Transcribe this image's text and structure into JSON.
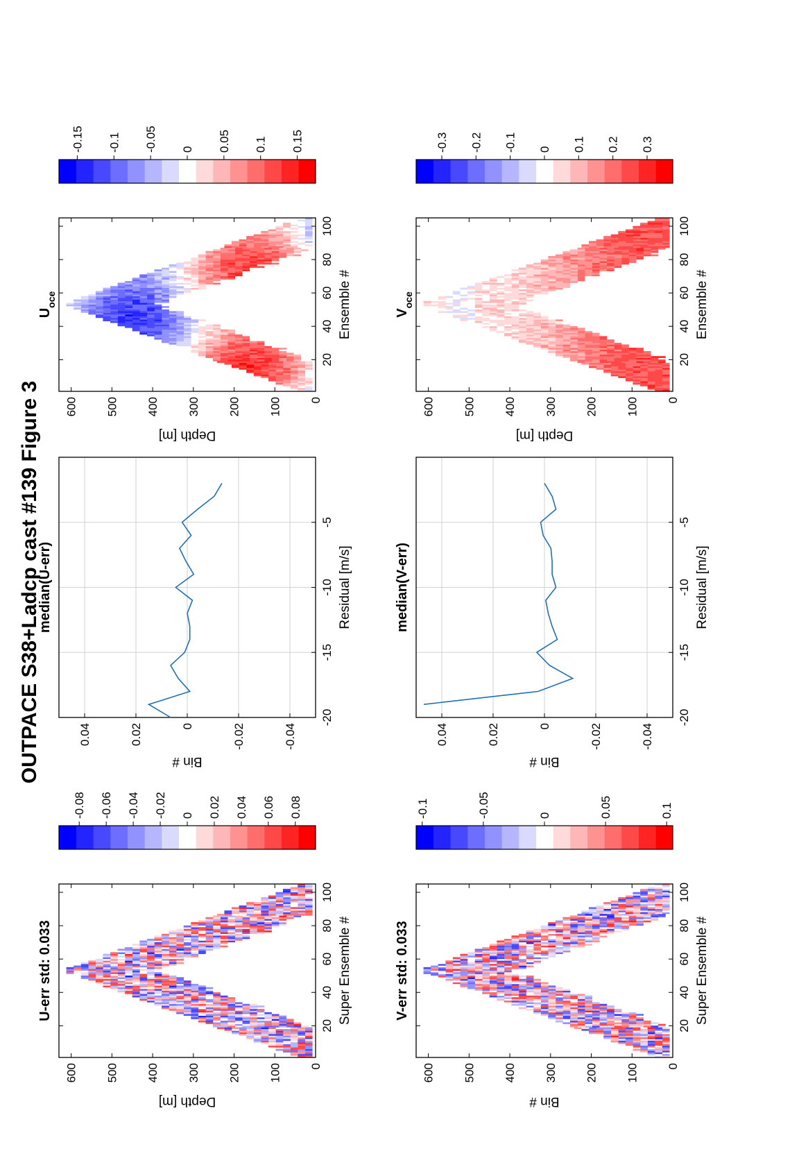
{
  "figure": {
    "title": "OUTPACE S38+Ladcp cast #139  Figure 3"
  },
  "colors": {
    "line": "#1f6fb2",
    "grid": "#d2d2d2",
    "cmap": [
      "#ff0000",
      "#ff2424",
      "#ff4848",
      "#ff6d6d",
      "#ff9191",
      "#ffb6b6",
      "#ffdada",
      "#ffffff",
      "#dadaff",
      "#b6b6ff",
      "#9191ff",
      "#6d6dff",
      "#4848ff",
      "#2424ff",
      "#0000ff"
    ]
  },
  "chart_data": [
    {
      "id": "u_err",
      "type": "heatmap",
      "title": "U-err std: 0.033",
      "xlabel": "Super Ensemble #",
      "ylabel": "Depth [m]",
      "xlim": [
        1,
        105
      ],
      "ylim": [
        0,
        630
      ],
      "xticks": [
        "20",
        "40",
        "60",
        "80",
        "100"
      ],
      "yticks": [
        "0",
        "100",
        "200",
        "300",
        "400",
        "500",
        "600"
      ],
      "colorbar": {
        "range": [
          -0.095,
          0.095
        ],
        "ticks": [
          "0.08",
          "0.06",
          "0.04",
          "0.02",
          "0",
          "-0.02",
          "-0.04",
          "-0.06",
          "-0.08"
        ]
      },
      "pattern": "V-shaped down/up cast, noisy residual ±0.08"
    },
    {
      "id": "u_median",
      "type": "line",
      "title": "median(U-err)",
      "xlabel": "Residual [m/s]",
      "ylabel": "Bin #",
      "xlim": [
        -0.05,
        0.05
      ],
      "ylim": [
        -20,
        0
      ],
      "xticks": [
        "-0.04",
        "-0.02",
        "0",
        "0.02",
        "0.04"
      ],
      "yticks": [
        "-5",
        "-10",
        "-15",
        "-20"
      ],
      "series": [
        {
          "x": [
            -0.0135,
            -0.0105,
            -0.004,
            0.002,
            -0.0015,
            0.003,
            0.0005,
            -0.0025,
            0.0045,
            -0.002,
            0.0,
            -0.001,
            -0.001,
            0.001,
            0.0065,
            0.0035,
            -0.001,
            0.015,
            0.0065
          ],
          "y": [
            -2,
            -3,
            -4,
            -5,
            -6,
            -7,
            -8,
            -9,
            -10,
            -11,
            -12,
            -13,
            -14,
            -15,
            -16,
            -17,
            -18,
            -19,
            -20
          ]
        }
      ]
    },
    {
      "id": "u_oce",
      "type": "heatmap",
      "title": "U",
      "title_sub": "oce",
      "xlabel": "Ensemble #",
      "ylabel": "Depth [m]",
      "xlim": [
        1,
        105
      ],
      "ylim": [
        0,
        630
      ],
      "xticks": [
        "20",
        "40",
        "60",
        "80",
        "100"
      ],
      "yticks": [
        "0",
        "100",
        "200",
        "300",
        "400",
        "500",
        "600"
      ],
      "colorbar": {
        "range": [
          -0.175,
          0.175
        ],
        "ticks": [
          "0.15",
          "0.1",
          "0.05",
          "0",
          "-0.05",
          "-0.1",
          "-0.15"
        ]
      },
      "pattern": "V-shaped cast, alternating red/blue bands with depth"
    },
    {
      "id": "v_err",
      "type": "heatmap",
      "title": "V-err std: 0.033",
      "xlabel": "Super Ensemble #",
      "ylabel": "Bin #",
      "xlim": [
        1,
        105
      ],
      "ylim": [
        0,
        630
      ],
      "xticks": [
        "20",
        "40",
        "60",
        "80",
        "100"
      ],
      "yticks": [
        "0",
        "100",
        "200",
        "300",
        "400",
        "500",
        "600"
      ],
      "colorbar": {
        "range": [
          -0.105,
          0.105
        ],
        "ticks": [
          "0.1",
          "0.05",
          "0",
          "-0.05",
          "-0.1"
        ]
      },
      "pattern": "V-shaped down/up cast, noisy residual ±0.1"
    },
    {
      "id": "v_median",
      "type": "line",
      "title": "median(V-err)",
      "xlabel": "Residual [m/s]",
      "ylabel": "Bin #",
      "xlim": [
        -0.05,
        0.05
      ],
      "ylim": [
        -20,
        0
      ],
      "xticks": [
        "-0.04",
        "-0.02",
        "0",
        "0.02",
        "0.04"
      ],
      "yticks": [
        "-5",
        "-10",
        "-15",
        "-20"
      ],
      "series": [
        {
          "x": [
            0.0,
            -0.003,
            -0.0045,
            0.0015,
            0.0005,
            -0.0025,
            -0.003,
            -0.003,
            -0.0045,
            -0.0005,
            -0.0015,
            -0.003,
            -0.005,
            0.003,
            -0.002,
            -0.011,
            0.0025,
            0.047
          ],
          "y": [
            -2,
            -3,
            -4,
            -5,
            -6,
            -7,
            -8,
            -9,
            -10,
            -11,
            -12,
            -13,
            -14,
            -15,
            -16,
            -17,
            -18,
            -19
          ]
        }
      ]
    },
    {
      "id": "v_oce",
      "type": "heatmap",
      "title": "V",
      "title_sub": "oce",
      "xlabel": "Ensemble #",
      "ylabel": "Depth [m]",
      "xlim": [
        1,
        105
      ],
      "ylim": [
        0,
        630
      ],
      "xticks": [
        "20",
        "40",
        "60",
        "80",
        "100"
      ],
      "yticks": [
        "0",
        "100",
        "200",
        "300",
        "400",
        "500",
        "600"
      ],
      "colorbar": {
        "range": [
          -0.375,
          0.375
        ],
        "ticks": [
          "0.3",
          "0.2",
          "0.1",
          "0",
          "-0.1",
          "-0.2",
          "-0.3"
        ]
      },
      "pattern": "V-shaped cast, predominantly positive (red)"
    }
  ]
}
